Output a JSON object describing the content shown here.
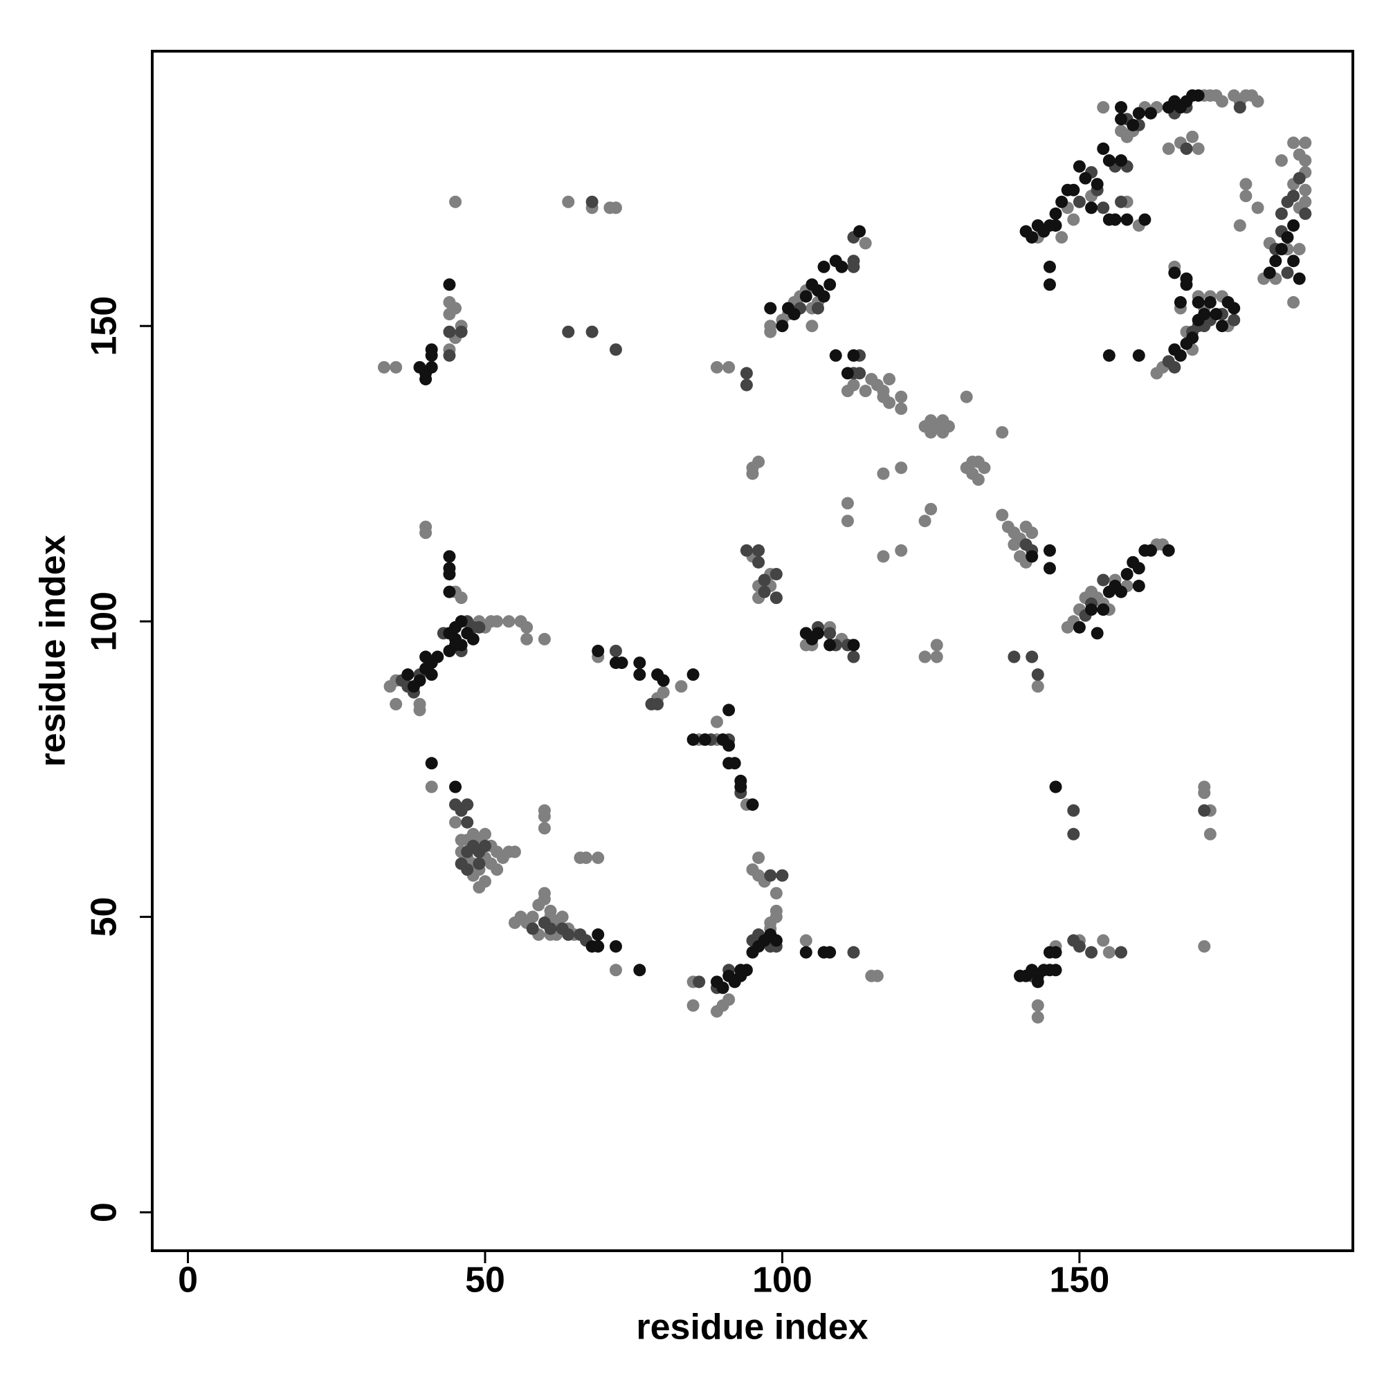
{
  "chart_data": {
    "type": "scatter",
    "xlabel": "residue index",
    "ylabel": "residue index",
    "xlim": [
      -6,
      196
    ],
    "ylim": [
      -6.5,
      196.5
    ],
    "xticks": [
      0,
      50,
      100,
      150
    ],
    "yticks": [
      0,
      50,
      100,
      150
    ],
    "series": [
      {
        "color": "#808080",
        "x": [
          33,
          35,
          44,
          45,
          44,
          46,
          45,
          44,
          45,
          64,
          68,
          71,
          72,
          98,
          98,
          100,
          101,
          102,
          103,
          104,
          105,
          105,
          106,
          114,
          111,
          112,
          114,
          115,
          116,
          117,
          117,
          118,
          118,
          120,
          120,
          89,
          91,
          124,
          125,
          126,
          127,
          128,
          125,
          127,
          131,
          137,
          131,
          132,
          133,
          134,
          132,
          133,
          95,
          95,
          96,
          117,
          120,
          111,
          111,
          125,
          124,
          120,
          117,
          137,
          138,
          139,
          140,
          141,
          142,
          139,
          140,
          141,
          148,
          149,
          150,
          151,
          152,
          153,
          154,
          155,
          156,
          158,
          163,
          164,
          154,
          158,
          161,
          163,
          171,
          172,
          173,
          174,
          176,
          177,
          178,
          179,
          180,
          186,
          188,
          187,
          188,
          188,
          188,
          188,
          187,
          186,
          184,
          185,
          187,
          186,
          183,
          182,
          181,
          178,
          178,
          180,
          177,
          164,
          163,
          168,
          170,
          171,
          172,
          174,
          169,
          166,
          167,
          175,
          148,
          149,
          152,
          158,
          160,
          147,
          143,
          165,
          167,
          169,
          170,
          157,
          159,
          40,
          40,
          45,
          46,
          49,
          50,
          51,
          52,
          54,
          56,
          57,
          57,
          60,
          34,
          35,
          35,
          39,
          39,
          69,
          79,
          80,
          83,
          86,
          89,
          89,
          94,
          95,
          96,
          96,
          98,
          98,
          99,
          104,
          105,
          108,
          110,
          124,
          126,
          126,
          143,
          41,
          45,
          46,
          46,
          47,
          48,
          49,
          50,
          51,
          52,
          53,
          54,
          55,
          46,
          47,
          48,
          49,
          50,
          48,
          49,
          50,
          51,
          52,
          60,
          60,
          60,
          55,
          56,
          57,
          58,
          59,
          60,
          60,
          61,
          61,
          62,
          63,
          64,
          65,
          59,
          61,
          62,
          66,
          67,
          69,
          72,
          85,
          89,
          90,
          91,
          85,
          95,
          96,
          96,
          97,
          99,
          99,
          99,
          98,
          98,
          97,
          99,
          104,
          115,
          116,
          143,
          143,
          146,
          150,
          154,
          155,
          171,
          171,
          172,
          172,
          171
        ],
        "values": [
          143,
          143,
          154,
          153,
          152,
          150,
          148,
          146,
          171,
          171,
          170,
          170,
          170,
          150,
          149,
          151,
          152,
          154,
          155,
          156,
          150,
          153,
          154,
          164,
          139,
          140,
          139,
          141,
          140,
          139,
          138,
          141,
          137,
          138,
          136,
          143,
          143,
          133,
          132,
          133,
          134,
          133,
          134,
          132,
          138,
          132,
          126,
          125,
          127,
          126,
          127,
          124,
          126,
          125,
          127,
          125,
          126,
          120,
          117,
          119,
          117,
          112,
          111,
          118,
          116,
          115,
          114,
          116,
          115,
          113,
          111,
          110,
          99,
          100,
          102,
          104,
          105,
          104,
          103,
          102,
          107,
          106,
          113,
          113,
          187,
          182,
          187,
          187,
          189,
          189,
          189,
          188,
          189,
          188,
          189,
          189,
          188,
          181,
          181,
          179,
          178,
          176,
          173,
          171,
          170,
          174,
          178,
          163,
          163,
          154,
          158,
          164,
          158,
          172,
          174,
          170,
          167,
          143,
          142,
          149,
          155,
          153,
          155,
          155,
          146,
          160,
          153,
          150,
          170,
          168,
          172,
          171,
          167,
          165,
          165,
          180,
          181,
          182,
          180,
          183,
          183,
          116,
          115,
          105,
          104,
          100,
          99,
          100,
          100,
          100,
          100,
          99,
          97,
          97,
          89,
          90,
          86,
          86,
          85,
          94,
          87,
          88,
          89,
          80,
          80,
          83,
          69,
          111,
          106,
          104,
          106,
          108,
          104,
          96,
          96,
          99,
          97,
          94,
          94,
          96,
          89,
          72,
          66,
          68,
          63,
          63,
          64,
          63,
          64,
          62,
          61,
          60,
          61,
          61,
          61,
          60,
          59,
          58,
          60,
          57,
          55,
          56,
          59,
          58,
          68,
          67,
          65,
          49,
          50,
          49,
          50,
          52,
          53,
          54,
          51,
          50,
          49,
          50,
          48,
          47,
          47,
          47,
          47,
          60,
          60,
          60,
          41,
          35,
          34,
          35,
          36,
          39,
          58,
          60,
          57,
          56,
          54,
          51,
          50,
          49,
          48,
          46,
          46,
          46,
          40,
          40,
          35,
          33,
          45,
          46,
          46,
          44,
          72,
          71,
          68,
          64,
          45
        ]
      },
      {
        "color": "#444444",
        "x": [
          44,
          46,
          44,
          68,
          64,
          68,
          72,
          103,
          106,
          112,
          112,
          112,
          112,
          113,
          113,
          94,
          94,
          141,
          142,
          151,
          152,
          154,
          158,
          160,
          166,
          168,
          177,
          187,
          186,
          185,
          184,
          184,
          185,
          183,
          188,
          165,
          166,
          169,
          170,
          171,
          172,
          174,
          176,
          150,
          152,
          153,
          156,
          158,
          157,
          154,
          168,
          43,
          47,
          48,
          46,
          49,
          37,
          36,
          39,
          38,
          72,
          78,
          79,
          80,
          88,
          91,
          93,
          94,
          96,
          96,
          97,
          97,
          99,
          99,
          106,
          108,
          109,
          111,
          112,
          139,
          142,
          143,
          45,
          46,
          47,
          47,
          47,
          48,
          49,
          50,
          47,
          49,
          46,
          58,
          60,
          61,
          63,
          64,
          66,
          67,
          86,
          89,
          91,
          95,
          96,
          98,
          99,
          98,
          100,
          112,
          142,
          149,
          150,
          152,
          157,
          149,
          149,
          171
        ],
        "values": [
          149,
          149,
          145,
          171,
          149,
          149,
          146,
          153,
          153,
          160,
          161,
          165,
          142,
          142,
          145,
          142,
          140,
          113,
          112,
          101,
          103,
          107,
          185,
          184,
          186,
          187,
          187,
          175,
          172,
          171,
          169,
          166,
          159,
          163,
          169,
          144,
          143,
          149,
          150,
          150,
          151,
          152,
          151,
          171,
          176,
          173,
          177,
          177,
          171,
          170,
          180,
          98,
          100,
          99,
          95,
          99,
          89,
          90,
          91,
          88,
          95,
          86,
          86,
          90,
          80,
          80,
          71,
          112,
          110,
          112,
          107,
          105,
          104,
          108,
          99,
          98,
          96,
          96,
          94,
          94,
          94,
          91,
          69,
          68,
          69,
          66,
          61,
          62,
          61,
          62,
          58,
          59,
          59,
          48,
          49,
          48,
          48,
          47,
          47,
          46,
          39,
          38,
          41,
          46,
          47,
          57,
          45,
          45,
          57,
          44,
          40,
          46,
          45,
          44,
          44,
          68,
          64,
          68
        ]
      },
      {
        "color": "#111111",
        "x": [
          39,
          40,
          41,
          40,
          41,
          41,
          44,
          98,
          100,
          101,
          102,
          104,
          105,
          106,
          107,
          107,
          108,
          109,
          110,
          113,
          109,
          111,
          112,
          142,
          145,
          145,
          150,
          152,
          153,
          154,
          155,
          156,
          157,
          158,
          159,
          160,
          161,
          162,
          165,
          160,
          145,
          145,
          141,
          142,
          143,
          145,
          146,
          147,
          148,
          157,
          157,
          159,
          160,
          162,
          165,
          166,
          167,
          168,
          169,
          170,
          186,
          185,
          184,
          186,
          183,
          182,
          187,
          166,
          167,
          168,
          169,
          170,
          171,
          172,
          173,
          175,
          174,
          168,
          168,
          167,
          166,
          170,
          176,
          155,
          160,
          150,
          151,
          153,
          154,
          155,
          157,
          152,
          155,
          156,
          158,
          161,
          149,
          146,
          144,
          44,
          44,
          44,
          44,
          44,
          45,
          46,
          47,
          46,
          45,
          44,
          45,
          48,
          42,
          41,
          40,
          39,
          38,
          41,
          40,
          37,
          69,
          72,
          73,
          76,
          76,
          79,
          80,
          85,
          85,
          87,
          90,
          91,
          91,
          91,
          92,
          93,
          93,
          95,
          104,
          105,
          106,
          108,
          112,
          41,
          45,
          68,
          69,
          69,
          72,
          76,
          89,
          90,
          91,
          92,
          93,
          94,
          95,
          96,
          97,
          98,
          99,
          93,
          104,
          107,
          108,
          140,
          141,
          142,
          143,
          143,
          144,
          145,
          146,
          145,
          146,
          146
        ],
        "values": [
          143,
          142,
          143,
          141,
          145,
          146,
          157,
          153,
          150,
          153,
          152,
          155,
          157,
          156,
          155,
          160,
          157,
          161,
          160,
          166,
          145,
          142,
          145,
          111,
          112,
          109,
          99,
          102,
          98,
          102,
          105,
          106,
          105,
          108,
          110,
          109,
          112,
          112,
          112,
          106,
          160,
          157,
          166,
          165,
          167,
          167,
          169,
          171,
          173,
          187,
          185,
          184,
          186,
          186,
          187,
          188,
          187,
          188,
          189,
          189,
          167,
          165,
          163,
          161,
          161,
          159,
          158,
          146,
          145,
          147,
          148,
          151,
          152,
          154,
          152,
          154,
          150,
          158,
          157,
          154,
          159,
          154,
          153,
          145,
          145,
          177,
          175,
          174,
          180,
          178,
          178,
          170,
          168,
          168,
          168,
          168,
          173,
          167,
          166,
          111,
          109,
          108,
          105,
          98,
          97,
          96,
          98,
          100,
          99,
          95,
          96,
          97,
          94,
          93,
          92,
          90,
          89,
          91,
          94,
          91,
          95,
          93,
          93,
          93,
          91,
          91,
          90,
          91,
          80,
          80,
          80,
          79,
          85,
          76,
          76,
          73,
          72,
          69,
          98,
          97,
          98,
          96,
          96,
          76,
          72,
          45,
          47,
          45,
          45,
          41,
          39,
          38,
          40,
          39,
          41,
          41,
          44,
          45,
          46,
          47,
          46,
          40,
          44,
          44,
          44,
          40,
          40,
          41,
          40,
          39,
          41,
          41,
          41,
          44,
          44,
          72
        ]
      }
    ]
  }
}
